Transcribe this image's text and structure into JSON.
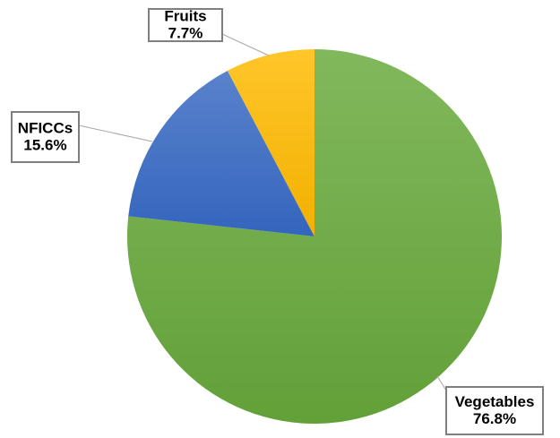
{
  "chart_data": {
    "type": "pie",
    "categories": [
      "Vegetables",
      "NFICCs",
      "Fruits"
    ],
    "values": [
      76.8,
      15.6,
      7.7
    ],
    "value_labels": [
      "76.8%",
      "15.6%",
      "7.7%"
    ],
    "colors": [
      "#70ad47",
      "#4472c4",
      "#ffc000"
    ]
  }
}
